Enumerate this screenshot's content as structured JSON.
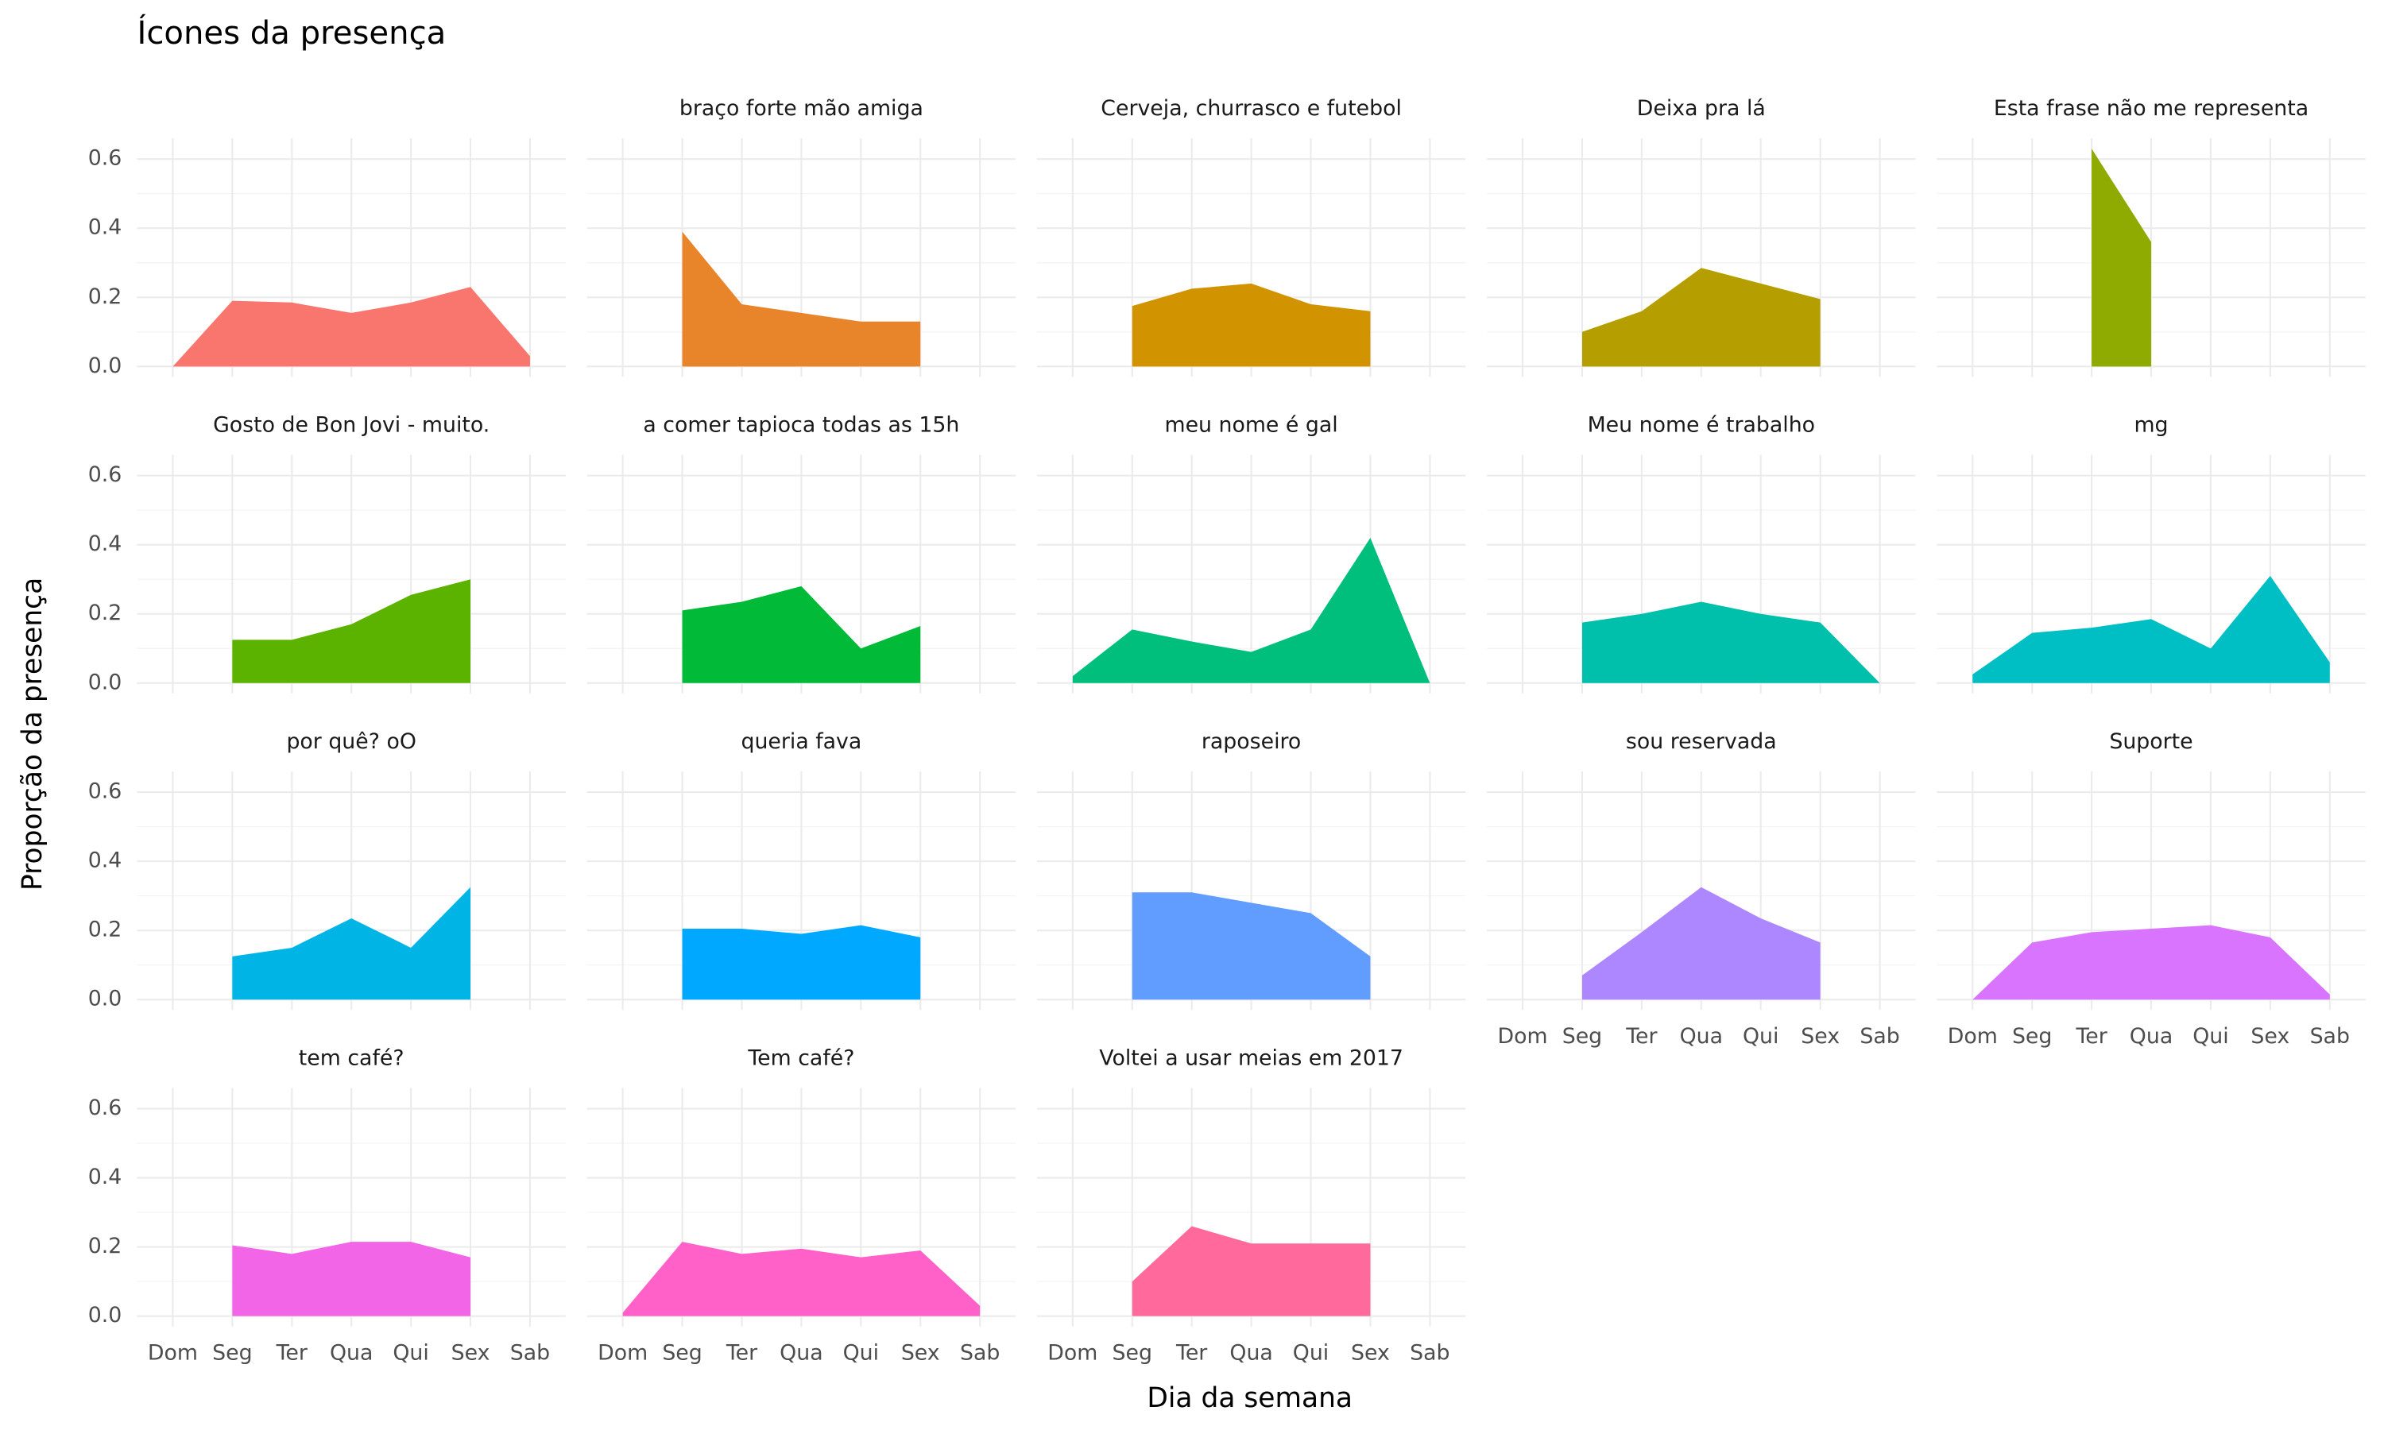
{
  "chart_data": {
    "type": "area",
    "title": "Ícones da presença",
    "x_label": "Dia da semana",
    "y_label": "Proporção da presença",
    "categories": [
      "Dom",
      "Seg",
      "Ter",
      "Qua",
      "Qui",
      "Sex",
      "Sab"
    ],
    "ylim": [
      -0.03,
      0.66
    ],
    "yticks": [
      {
        "value": 0,
        "label": "0.0"
      },
      {
        "value": 0.2,
        "label": "0.2"
      },
      {
        "value": 0.4,
        "label": "0.4"
      },
      {
        "value": 0.6,
        "label": "0.6"
      }
    ],
    "yticks_minor": [
      0.1,
      0.3,
      0.5
    ],
    "grid": true,
    "ncol": 5,
    "facets": [
      {
        "name": null,
        "color": "#F8766D",
        "values": [
          0.0,
          0.19,
          0.185,
          0.155,
          0.185,
          0.23,
          0.03
        ]
      },
      {
        "name": "braço forte mão amiga",
        "color": "#E8852B",
        "values": [
          null,
          0.39,
          0.18,
          0.155,
          0.13,
          0.13,
          null
        ]
      },
      {
        "name": "Cerveja, churrasco e futebol",
        "color": "#D29300",
        "values": [
          null,
          0.175,
          0.225,
          0.24,
          0.18,
          0.16,
          null
        ]
      },
      {
        "name": "Deixa pra lá",
        "color": "#B59F00",
        "values": [
          null,
          0.1,
          0.16,
          0.285,
          0.24,
          0.195,
          null
        ]
      },
      {
        "name": "Esta frase não me representa",
        "color": "#8FAA00",
        "values": [
          null,
          null,
          0.63,
          0.36,
          null,
          null,
          null
        ]
      },
      {
        "name": "Gosto de Bon Jovi - muito.",
        "color": "#5BB300",
        "values": [
          null,
          0.125,
          0.125,
          0.17,
          0.255,
          0.3,
          null
        ]
      },
      {
        "name": "a comer tapioca todas as 15h",
        "color": "#00BA38",
        "values": [
          null,
          0.21,
          0.235,
          0.28,
          0.1,
          0.165,
          null
        ]
      },
      {
        "name": "meu nome é gal",
        "color": "#00BF7D",
        "values": [
          0.02,
          0.155,
          0.12,
          0.09,
          0.155,
          0.42,
          0.0
        ]
      },
      {
        "name": "Meu nome é trabalho",
        "color": "#00C0AB",
        "values": [
          null,
          0.175,
          0.2,
          0.235,
          0.2,
          0.175,
          0.0
        ]
      },
      {
        "name": "mg",
        "color": "#00BFC4",
        "values": [
          0.025,
          0.145,
          0.16,
          0.185,
          0.1,
          0.31,
          0.06
        ]
      },
      {
        "name": "por quê? oO",
        "color": "#00B5E5",
        "values": [
          null,
          0.125,
          0.15,
          0.235,
          0.15,
          0.325,
          null
        ]
      },
      {
        "name": "queria fava",
        "color": "#00A9FF",
        "values": [
          null,
          0.205,
          0.205,
          0.19,
          0.215,
          0.18,
          null
        ]
      },
      {
        "name": "raposeiro",
        "color": "#619CFF",
        "values": [
          null,
          0.31,
          0.31,
          0.28,
          0.25,
          0.125,
          null
        ]
      },
      {
        "name": "sou reservada",
        "color": "#AD87FF",
        "values": [
          null,
          0.07,
          0.195,
          0.325,
          0.235,
          0.165,
          null
        ]
      },
      {
        "name": "Suporte",
        "color": "#D874FD",
        "values": [
          0.0,
          0.165,
          0.195,
          0.205,
          0.215,
          0.18,
          0.015
        ]
      },
      {
        "name": "tem café?",
        "color": "#F265E7",
        "values": [
          null,
          0.205,
          0.18,
          0.215,
          0.215,
          0.17,
          null
        ]
      },
      {
        "name": "Tem café?",
        "color": "#FF61C9",
        "values": [
          0.01,
          0.215,
          0.18,
          0.195,
          0.17,
          0.19,
          0.03
        ]
      },
      {
        "name": "Voltei a usar meias em 2017",
        "color": "#FF699C",
        "values": [
          null,
          0.1,
          0.26,
          0.21,
          0.21,
          0.21,
          null
        ]
      }
    ]
  }
}
